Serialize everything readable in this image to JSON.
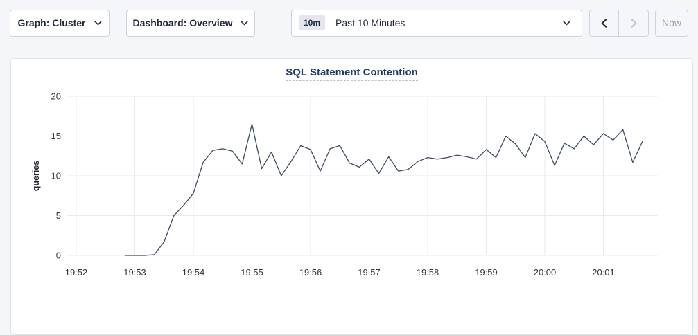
{
  "toolbar": {
    "graph_dropdown": {
      "label": "Graph: Cluster"
    },
    "dashboard_dropdown": {
      "label": "Dashboard: Overview"
    },
    "time_selector": {
      "badge": "10m",
      "label": "Past 10 Minutes"
    },
    "now_button_label": "Now"
  },
  "chart": {
    "title": "SQL Statement Contention"
  },
  "chart_data": {
    "type": "line",
    "title": "SQL Statement Contention",
    "ylabel": "queries",
    "ylim": [
      0,
      20
    ],
    "yticks": [
      0,
      5,
      10,
      15,
      20
    ],
    "x_tick_labels": [
      "19:52",
      "19:53",
      "19:54",
      "19:55",
      "19:56",
      "19:57",
      "19:58",
      "19:59",
      "20:00",
      "20:01"
    ],
    "grid": true,
    "legend": "none",
    "line_color": "#3b4a63",
    "grid_color": "#e9eaee",
    "series": [
      {
        "name": "SQL Statement Contention",
        "start_time": "19:52:50",
        "interval_seconds": 10,
        "values": [
          0,
          0,
          0,
          0.1,
          1.7,
          5.0,
          6.3,
          7.8,
          11.7,
          13.2,
          13.4,
          13.1,
          11.5,
          16.5,
          10.9,
          13.0,
          10.0,
          11.8,
          13.8,
          13.3,
          10.6,
          13.4,
          13.8,
          11.6,
          11.1,
          12.1,
          10.3,
          12.4,
          10.6,
          10.8,
          11.8,
          12.3,
          12.1,
          12.3,
          12.6,
          12.4,
          12.1,
          13.3,
          12.3,
          15.0,
          14.0,
          12.3,
          15.3,
          14.3,
          11.3,
          14.1,
          13.4,
          15.0,
          13.9,
          15.3,
          14.5,
          15.8,
          11.7,
          14.3
        ]
      }
    ]
  }
}
